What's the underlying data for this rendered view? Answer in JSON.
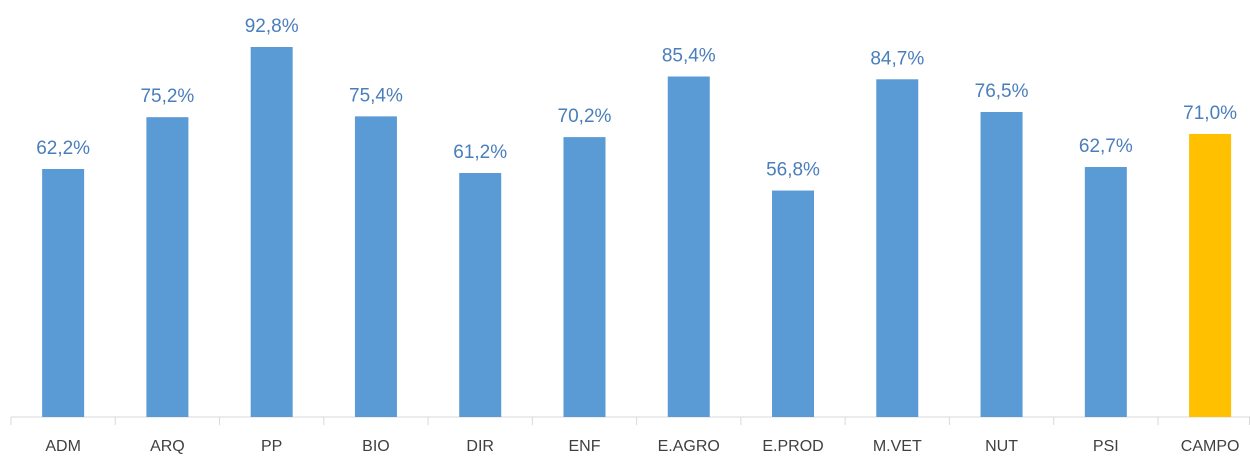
{
  "chart_data": {
    "type": "bar",
    "categories": [
      "ADM",
      "ARQ",
      "PP",
      "BIO",
      "DIR",
      "ENF",
      "E.AGRO",
      "E.PROD",
      "M.VET",
      "NUT",
      "PSI",
      "CAMPO"
    ],
    "values": [
      62.2,
      75.2,
      92.8,
      75.4,
      61.2,
      70.2,
      85.4,
      56.8,
      84.7,
      76.5,
      62.7,
      71.0
    ],
    "value_labels": [
      "62,2%",
      "75,2%",
      "92,8%",
      "75,4%",
      "61,2%",
      "70,2%",
      "85,4%",
      "56,8%",
      "84,7%",
      "76,5%",
      "62,7%",
      "71,0%"
    ],
    "colors": [
      "#5b9bd5",
      "#5b9bd5",
      "#5b9bd5",
      "#5b9bd5",
      "#5b9bd5",
      "#5b9bd5",
      "#5b9bd5",
      "#5b9bd5",
      "#5b9bd5",
      "#5b9bd5",
      "#5b9bd5",
      "#ffc000"
    ]
  }
}
